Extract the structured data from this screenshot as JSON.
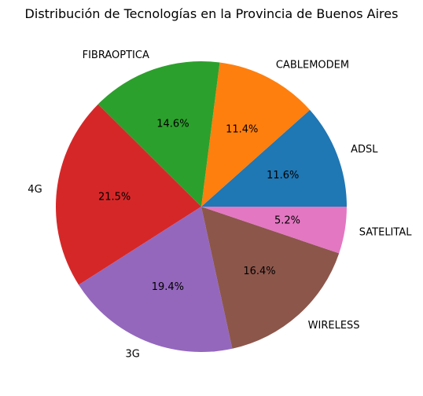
{
  "chart_data": {
    "type": "pie",
    "title": "Distribución de Tecnologías en la Provincia de Buenos Aires",
    "slices": [
      {
        "label": "ADSL",
        "value": 11.6,
        "pct_label": "11.6%",
        "color": "#1f77b4"
      },
      {
        "label": "CABLEMODEM",
        "value": 11.4,
        "pct_label": "11.4%",
        "color": "#ff7f0e"
      },
      {
        "label": "FIBRAOPTICA",
        "value": 14.6,
        "pct_label": "14.6%",
        "color": "#2ca02c"
      },
      {
        "label": "4G",
        "value": 21.5,
        "pct_label": "21.5%",
        "color": "#d62728"
      },
      {
        "label": "3G",
        "value": 19.4,
        "pct_label": "19.4%",
        "color": "#9467bd"
      },
      {
        "label": "WIRELESS",
        "value": 16.4,
        "pct_label": "16.4%",
        "color": "#8c564b"
      },
      {
        "label": "SATELITAL",
        "value": 5.2,
        "pct_label": "5.2%",
        "color": "#e377c2"
      }
    ],
    "start_angle_deg": 0,
    "direction": "counterclockwise"
  }
}
